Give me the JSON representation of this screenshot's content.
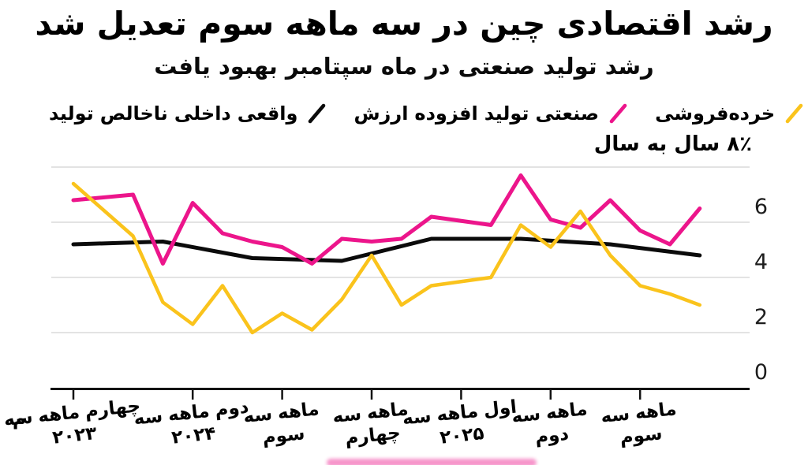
{
  "title": "رشد اقتصادی چین در سه ماهه سوم تعدیل شد",
  "subtitle": "رشد تولید صنعتی در ماه سپتامبر بهبود یافت",
  "legend": [
    {
      "series": "gdp",
      "label_words": [
        "تولید",
        "ناخالص",
        "داخلی",
        "واقعی"
      ],
      "color": "#0b0b0b"
    },
    {
      "series": "industrial",
      "label_words": [
        "ارزش",
        "افزوده",
        "تولید",
        "صنعتی"
      ],
      "color": "#ec158b"
    },
    {
      "series": "retail",
      "label_words": [
        "خرده‌فروشی"
      ],
      "color": "#fac31c"
    }
  ],
  "y_axis": {
    "unit_label": "۸٪ سال به سال",
    "ticks": [
      {
        "label": "6",
        "value": 6
      },
      {
        "label": "4",
        "value": 4
      },
      {
        "label": "2",
        "value": 2
      },
      {
        "label": "0",
        "value": 0
      }
    ]
  },
  "x_axis": {
    "clipped_left_fragment": "م",
    "ticks": [
      {
        "m": 0,
        "line1_words": [
          "سه",
          "ماهه",
          "چهارم"
        ],
        "line2": "۲۰۲۳"
      },
      {
        "m": 4,
        "line1_words": [
          "سه",
          "ماهه",
          "دوم"
        ],
        "line2": "۲۰۲۴"
      },
      {
        "m": 7,
        "line1_words": [
          "سه",
          "ماهه"
        ],
        "line2": "سوم"
      },
      {
        "m": 10,
        "line1_words": [
          "سه",
          "ماهه"
        ],
        "line2": "چهارم"
      },
      {
        "m": 13,
        "line1_words": [
          "سه",
          "ماهه",
          "اول"
        ],
        "line2": "۲۰۲۵"
      },
      {
        "m": 16,
        "line1_words": [
          "سه",
          "ماهه"
        ],
        "line2": "دوم"
      },
      {
        "m": 19,
        "line1_words": [
          "سه",
          "ماهه"
        ],
        "line2": "سوم"
      }
    ]
  },
  "watermark_color": "#ec158b",
  "chart_data": {
    "type": "line",
    "unit": "percent year-over-year",
    "ylim": [
      0,
      8
    ],
    "y_gridlines": [
      2,
      4,
      6,
      8
    ],
    "grid_color": "#e3e3e3",
    "axis_color": "#131313",
    "x_months": [
      "2023-12",
      "2024-02",
      "2024-03",
      "2024-04",
      "2024-05",
      "2024-06",
      "2024-07",
      "2024-08",
      "2024-09",
      "2024-10",
      "2024-11",
      "2024-12",
      "2025-02",
      "2025-03",
      "2025-04",
      "2025-05",
      "2025-06",
      "2025-07",
      "2025-08",
      "2025-09"
    ],
    "series": [
      {
        "key": "gdp",
        "name": "تولید ناخالص داخلی واقعی",
        "color": "#0b0b0b",
        "width": 5,
        "month_offsets": [
          0,
          3,
          6,
          9,
          12,
          15,
          18,
          21
        ],
        "values": [
          5.2,
          5.3,
          4.7,
          4.6,
          5.4,
          5.4,
          5.2,
          4.8
        ]
      },
      {
        "key": "industrial",
        "name": "ارزش افزوده تولید صنعتی",
        "color": "#ec158b",
        "width": 5,
        "month_offsets": [
          0,
          2,
          3,
          4,
          5,
          6,
          7,
          8,
          9,
          10,
          11,
          12,
          14,
          15,
          16,
          17,
          18,
          19,
          20,
          21
        ],
        "values": [
          6.8,
          7.0,
          4.5,
          6.7,
          5.6,
          5.3,
          5.1,
          4.5,
          5.4,
          5.3,
          5.4,
          6.2,
          5.9,
          7.7,
          6.1,
          5.8,
          6.8,
          5.7,
          5.2,
          6.5
        ]
      },
      {
        "key": "retail",
        "name": "خرده‌فروشی",
        "color": "#fac31c",
        "width": 4.5,
        "month_offsets": [
          0,
          2,
          3,
          4,
          5,
          6,
          7,
          8,
          9,
          10,
          11,
          12,
          14,
          15,
          16,
          17,
          18,
          19,
          20,
          21
        ],
        "values": [
          7.4,
          5.5,
          3.1,
          2.3,
          3.7,
          2.0,
          2.7,
          2.1,
          3.2,
          4.8,
          3.0,
          3.7,
          4.0,
          5.9,
          5.1,
          6.4,
          4.8,
          3.7,
          3.4,
          3.0
        ]
      }
    ]
  }
}
